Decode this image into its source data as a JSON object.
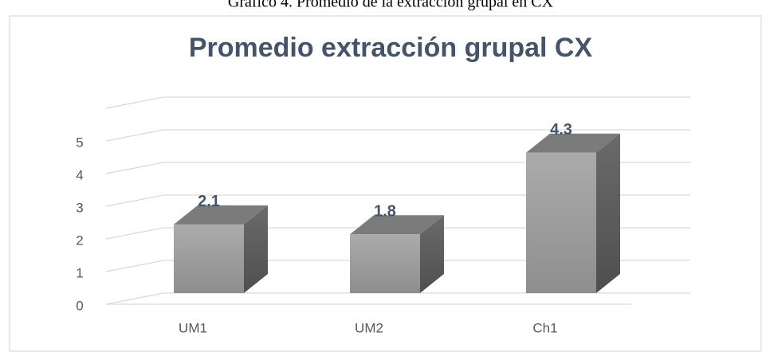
{
  "caption": "Gráfico 4. Promedio de la extracción grupal en CX",
  "chart_data": {
    "type": "bar3d",
    "title": "Promedio extracción grupal CX",
    "categories": [
      "UM1",
      "UM2",
      "Ch1"
    ],
    "values": [
      2.1,
      1.8,
      4.3
    ],
    "color": "#9a9a9a",
    "ylim": [
      0,
      6
    ],
    "yticks": [
      0,
      1,
      2,
      3,
      4,
      5
    ],
    "grid": true
  }
}
